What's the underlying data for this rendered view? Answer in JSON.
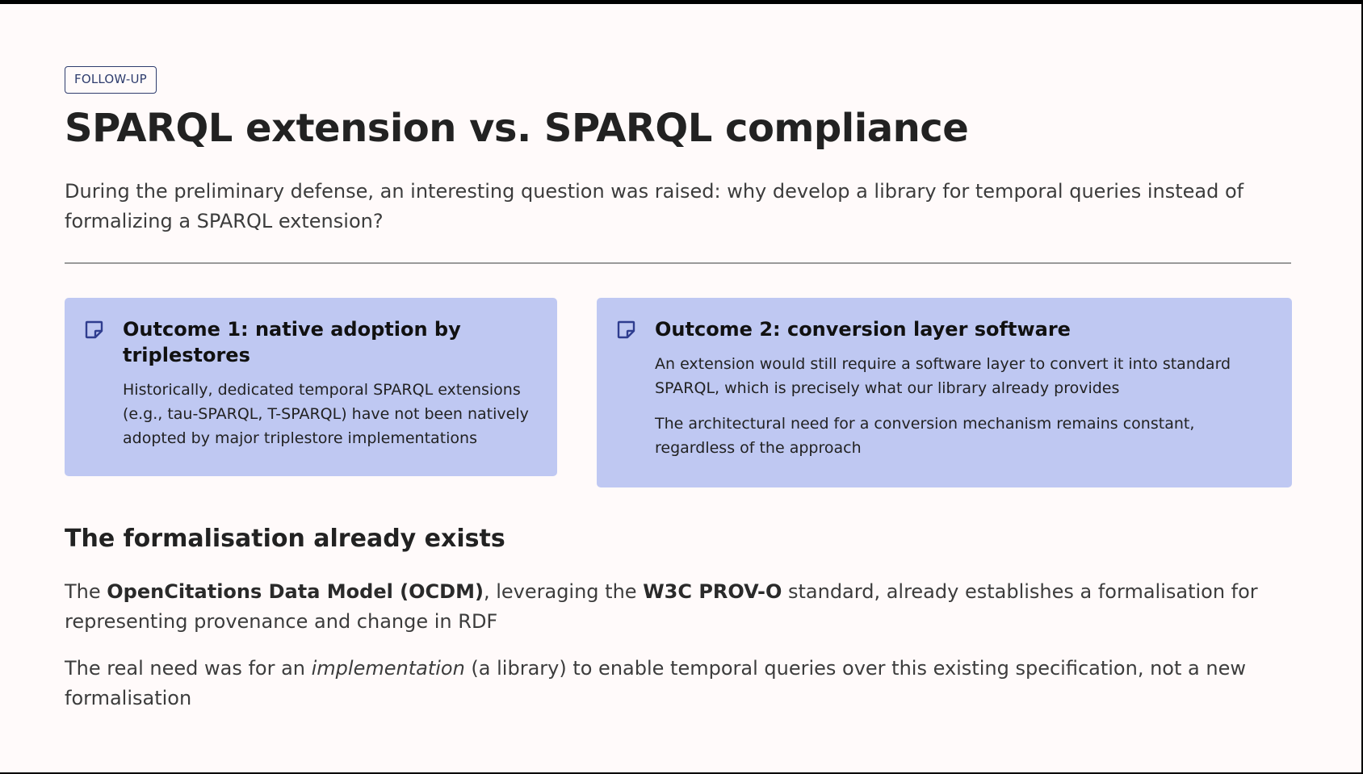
{
  "badge": "FOLLOW-UP",
  "title": "SPARQL extension vs. SPARQL compliance",
  "intro": "During the preliminary defense, an interesting question was raised: why develop a library for temporal queries instead of formalizing a SPARQL extension?",
  "cards": [
    {
      "icon": "sticky-note-icon",
      "title": "Outcome 1: native adoption by triplestores",
      "paragraphs": [
        "Historically, dedicated temporal SPARQL extensions (e.g., tau-SPARQL, T-SPARQL) have not been natively adopted by major triplestore implementations"
      ]
    },
    {
      "icon": "sticky-note-icon",
      "title": "Outcome 2: conversion layer software",
      "paragraphs": [
        "An extension would still require a software layer to convert it into standard SPARQL, which is precisely what our library already provides",
        "The architectural need for a conversion mechanism remains constant, regardless of the approach"
      ]
    }
  ],
  "section": {
    "title": "The formalisation already exists",
    "p1": {
      "t1": "The ",
      "b1": "OpenCitations Data Model (OCDM)",
      "t2": ", leveraging the ",
      "b2": "W3C PROV-O",
      "t3": " standard, already establishes a formalisation for representing provenance and change in RDF"
    },
    "p2": {
      "t1": "The real need was for an ",
      "em": "implementation",
      "t2": " (a library) to enable temporal queries over this existing specification, not a new formalisation"
    }
  },
  "colors": {
    "background": "#fffafa",
    "card": "#bfc8f2",
    "badge_border": "#2f3d6e",
    "icon": "#2f3d8f",
    "divider": "#9a9a9a"
  }
}
